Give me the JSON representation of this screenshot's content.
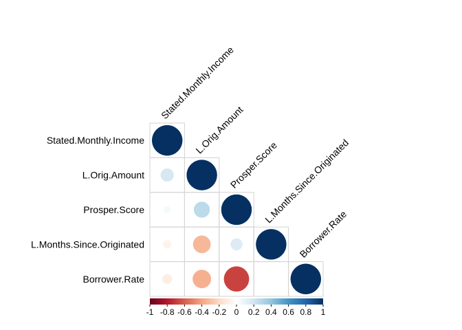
{
  "chart_data": {
    "type": "heatmap",
    "subtype": "correlation-matrix-circles",
    "layout": "lower-triangle",
    "variables": [
      "Stated.Monthly.Income",
      "L.Orig.Amount",
      "Prosper.Score",
      "L.Months.Since.Originated",
      "Borrower.Rate"
    ],
    "matrix": [
      [
        1.0,
        null,
        null,
        null,
        null
      ],
      [
        0.18,
        1.0,
        null,
        null,
        null
      ],
      [
        0.05,
        0.27,
        1.0,
        null,
        null
      ],
      [
        -0.07,
        -0.33,
        0.15,
        1.0,
        null
      ],
      [
        -0.1,
        -0.36,
        -0.68,
        0.01,
        1.0
      ]
    ],
    "colorbar": {
      "ticks": [
        "-1",
        "-0.8",
        "-0.6",
        "-0.4",
        "-0.2",
        "0",
        "0.2",
        "0.4",
        "0.6",
        "0.8",
        "1"
      ],
      "range": [
        -1,
        1
      ],
      "colors": [
        "#67001F",
        "#B2182B",
        "#D6604D",
        "#F4A582",
        "#FDDBC7",
        "#FFFFFF",
        "#D1E5F0",
        "#92C5DE",
        "#4393C3",
        "#2166AC",
        "#053061"
      ]
    },
    "title": "",
    "xlabel": "",
    "ylabel": ""
  }
}
